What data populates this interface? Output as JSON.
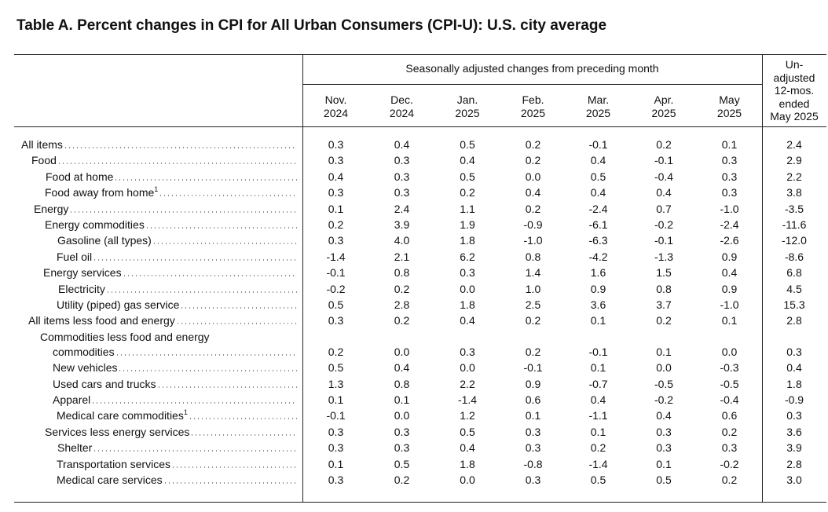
{
  "title": "Table A. Percent changes in CPI for All Urban Consumers (CPI-U): U.S. city average",
  "table": {
    "group_header": "Seasonally adjusted changes from preceding month",
    "columns": [
      [
        "Nov.",
        "2024"
      ],
      [
        "Dec.",
        "2024"
      ],
      [
        "Jan.",
        "2025"
      ],
      [
        "Feb.",
        "2025"
      ],
      [
        "Mar.",
        "2025"
      ],
      [
        "Apr.",
        "2025"
      ],
      [
        "May",
        "2025"
      ]
    ],
    "last_column": [
      "Un-",
      "adjusted",
      "12-mos.",
      "ended",
      "May 2025"
    ],
    "rows": [
      {
        "label": "All items",
        "values": [
          "0.3",
          "0.4",
          "0.5",
          "0.2",
          "-0.1",
          "0.2",
          "0.1",
          "2.4"
        ]
      },
      {
        "label": "Food",
        "values": [
          "0.3",
          "0.3",
          "0.4",
          "0.2",
          "0.4",
          "-0.1",
          "0.3",
          "2.9"
        ]
      },
      {
        "label": "Food at home",
        "values": [
          "0.4",
          "0.3",
          "0.5",
          "0.0",
          "0.5",
          "-0.4",
          "0.3",
          "2.2"
        ]
      },
      {
        "label": "Food away from home",
        "footnote": "1",
        "values": [
          "0.3",
          "0.3",
          "0.2",
          "0.4",
          "0.4",
          "0.4",
          "0.3",
          "3.8"
        ]
      },
      {
        "label": "Energy",
        "values": [
          "0.1",
          "2.4",
          "1.1",
          "0.2",
          "-2.4",
          "0.7",
          "-1.0",
          "-3.5"
        ]
      },
      {
        "label": "Energy commodities",
        "values": [
          "0.2",
          "3.9",
          "1.9",
          "-0.9",
          "-6.1",
          "-0.2",
          "-2.4",
          "-11.6"
        ]
      },
      {
        "label": "Gasoline (all types)",
        "values": [
          "0.3",
          "4.0",
          "1.8",
          "-1.0",
          "-6.3",
          "-0.1",
          "-2.6",
          "-12.0"
        ]
      },
      {
        "label": "Fuel oil",
        "values": [
          "-1.4",
          "2.1",
          "6.2",
          "0.8",
          "-4.2",
          "-1.3",
          "0.9",
          "-8.6"
        ]
      },
      {
        "label": "Energy services",
        "values": [
          "-0.1",
          "0.8",
          "0.3",
          "1.4",
          "1.6",
          "1.5",
          "0.4",
          "6.8"
        ]
      },
      {
        "label": "Electricity",
        "values": [
          "-0.2",
          "0.2",
          "0.0",
          "1.0",
          "0.9",
          "0.8",
          "0.9",
          "4.5"
        ]
      },
      {
        "label": "Utility (piped) gas service",
        "values": [
          "0.5",
          "2.8",
          "1.8",
          "2.5",
          "3.6",
          "3.7",
          "-1.0",
          "15.3"
        ]
      },
      {
        "label": "All items less food and energy",
        "values": [
          "0.3",
          "0.2",
          "0.4",
          "0.2",
          "0.1",
          "0.2",
          "0.1",
          "2.8"
        ]
      },
      {
        "label": "Commodities less food and energy",
        "continuation": "commodities",
        "values": [
          "0.2",
          "0.0",
          "0.3",
          "0.2",
          "-0.1",
          "0.1",
          "0.0",
          "0.3"
        ]
      },
      {
        "label": "New vehicles",
        "values": [
          "0.5",
          "0.4",
          "0.0",
          "-0.1",
          "0.1",
          "0.0",
          "-0.3",
          "0.4"
        ]
      },
      {
        "label": "Used cars and trucks",
        "values": [
          "1.3",
          "0.8",
          "2.2",
          "0.9",
          "-0.7",
          "-0.5",
          "-0.5",
          "1.8"
        ]
      },
      {
        "label": "Apparel",
        "values": [
          "0.1",
          "0.1",
          "-1.4",
          "0.6",
          "0.4",
          "-0.2",
          "-0.4",
          "-0.9"
        ]
      },
      {
        "label": "Medical care commodities",
        "footnote": "1",
        "values": [
          "-0.1",
          "0.0",
          "1.2",
          "0.1",
          "-1.1",
          "0.4",
          "0.6",
          "0.3"
        ]
      },
      {
        "label": "Services less energy services",
        "values": [
          "0.3",
          "0.3",
          "0.5",
          "0.3",
          "0.1",
          "0.3",
          "0.2",
          "3.6"
        ]
      },
      {
        "label": "Shelter",
        "values": [
          "0.3",
          "0.3",
          "0.4",
          "0.3",
          "0.2",
          "0.3",
          "0.3",
          "3.9"
        ]
      },
      {
        "label": "Transportation services",
        "values": [
          "0.1",
          "0.5",
          "1.8",
          "-0.8",
          "-1.4",
          "0.1",
          "-0.2",
          "2.8"
        ]
      },
      {
        "label": "Medical care services",
        "values": [
          "0.3",
          "0.2",
          "0.0",
          "0.3",
          "0.5",
          "0.5",
          "0.2",
          "3.0"
        ]
      }
    ]
  }
}
